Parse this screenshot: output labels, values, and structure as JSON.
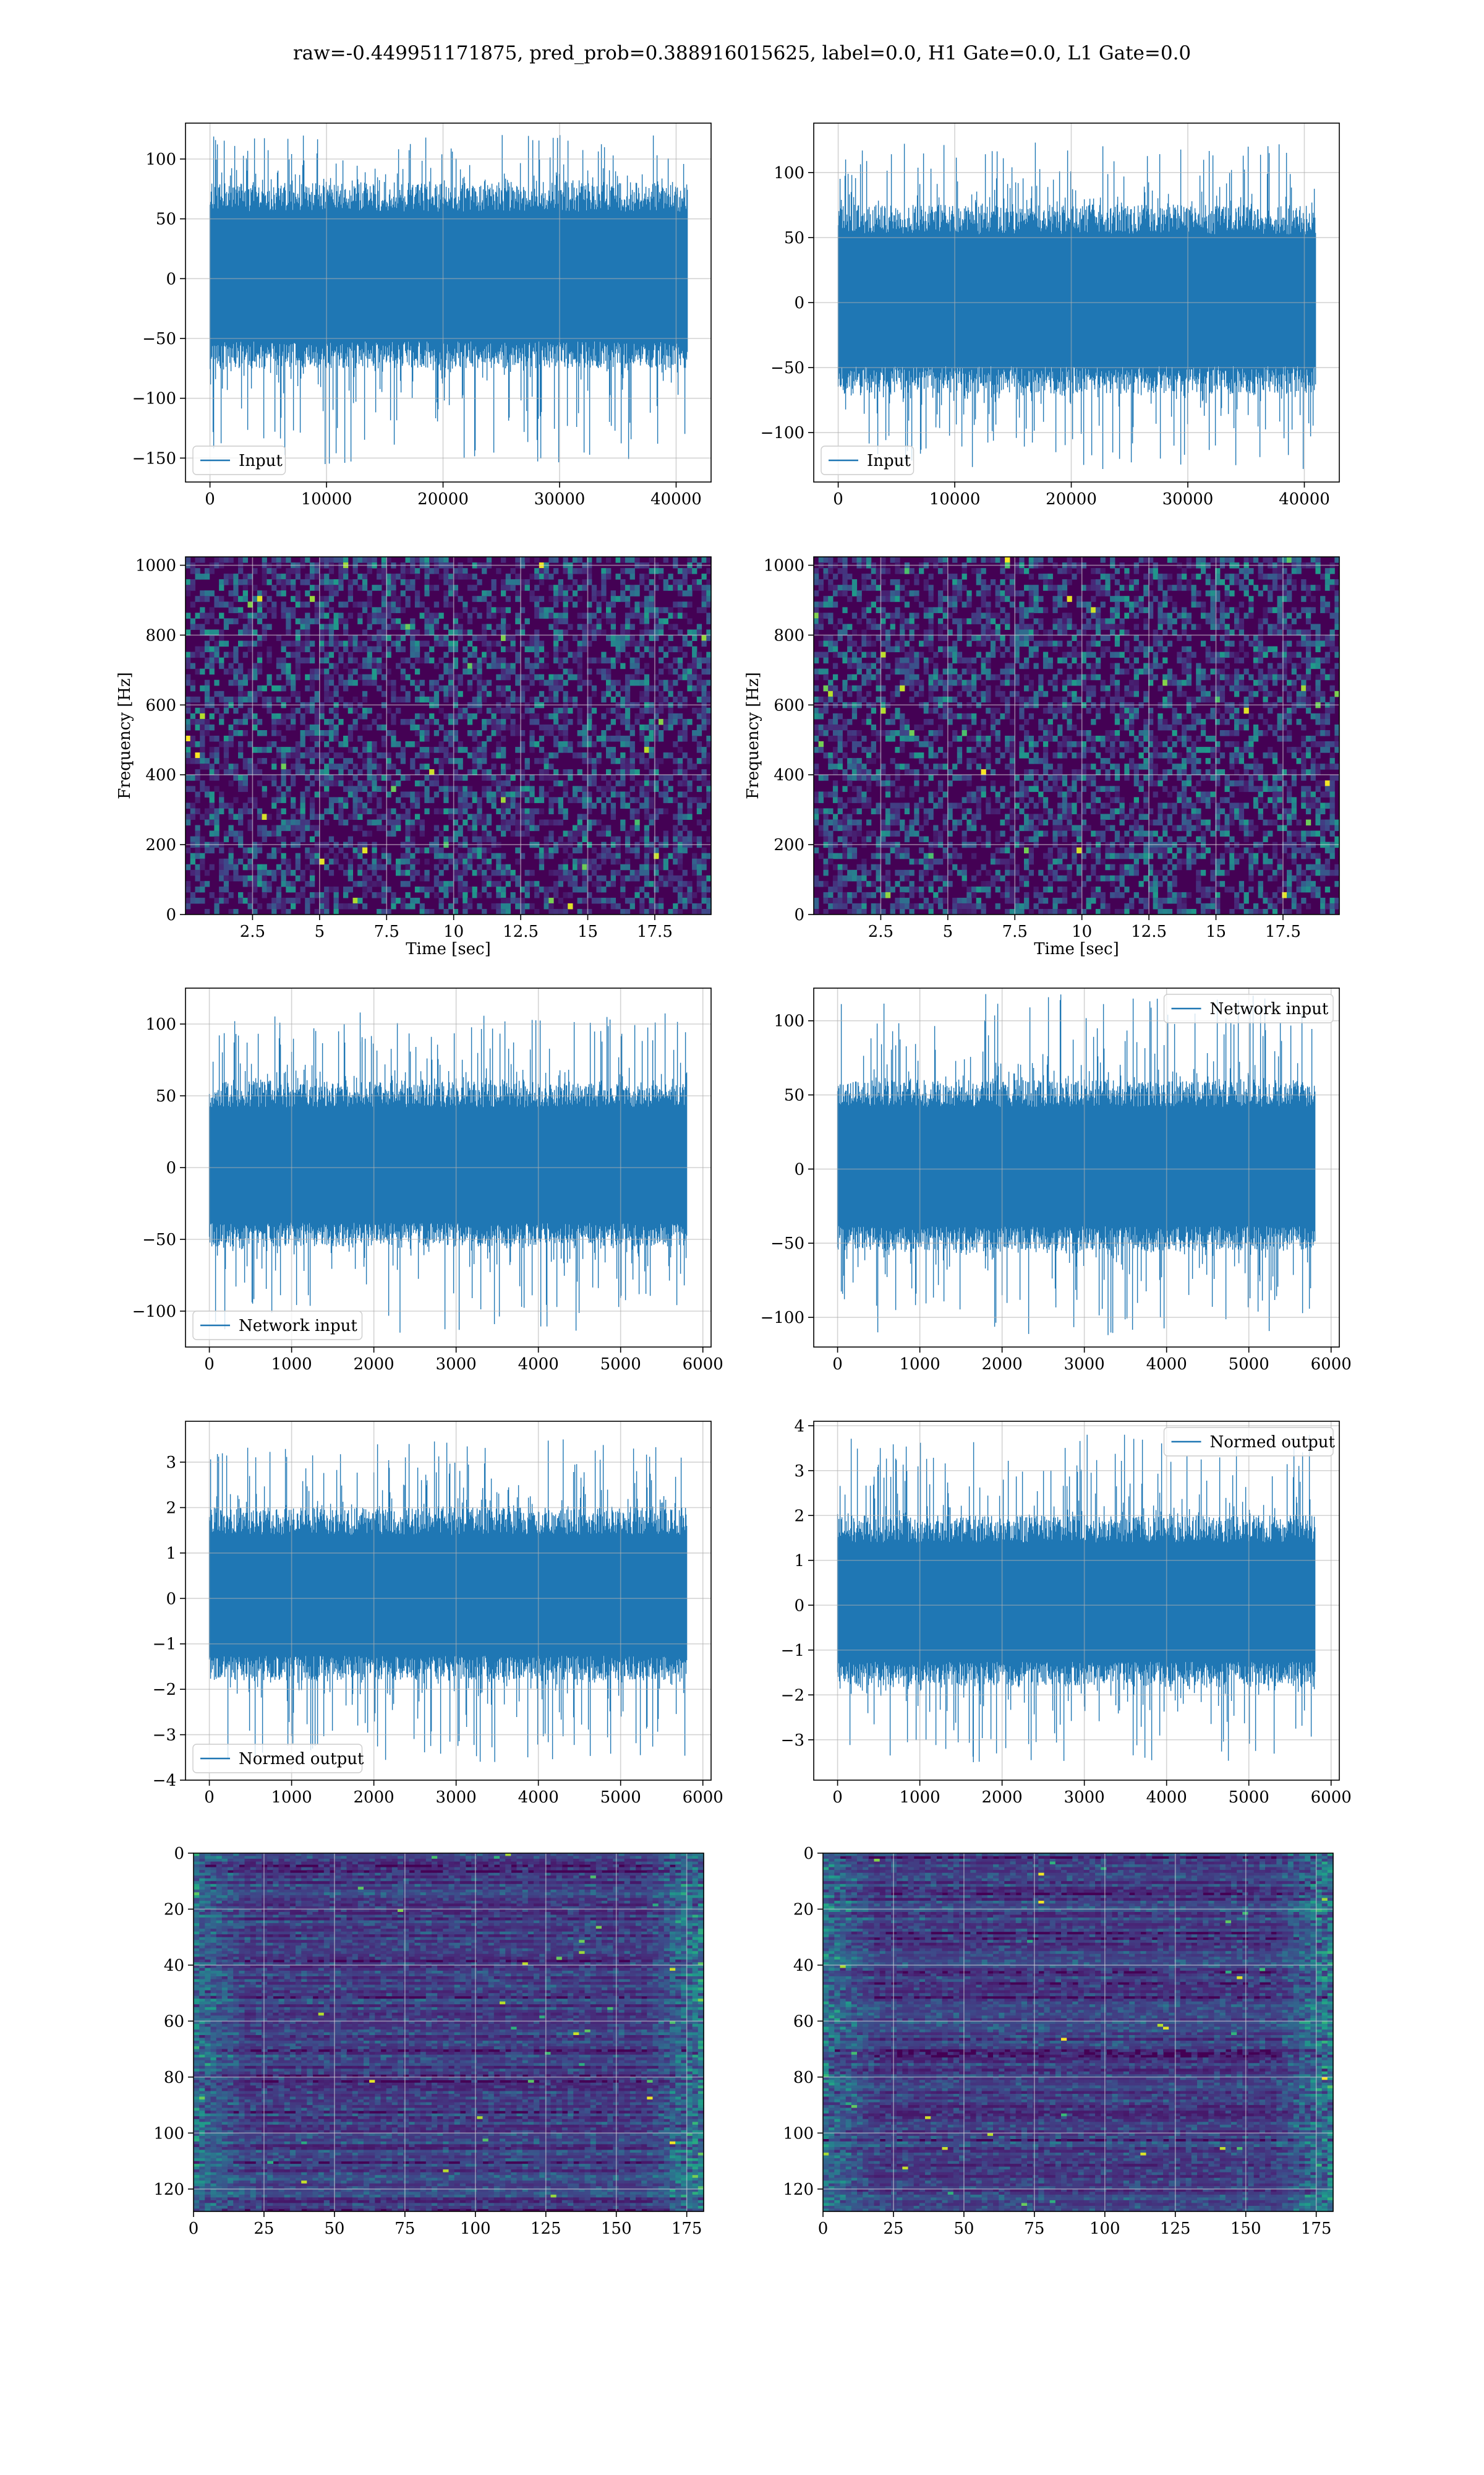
{
  "figure": {
    "title": "raw=-0.449951171875, pred_prob=0.388916015625, label=0.0, H1 Gate=0.0, L1 Gate=0.0"
  },
  "colors": {
    "line": "#1f77b4",
    "grid": "#b0b0b0",
    "viridis_dark": "#440154",
    "viridis_mid": "#21918c",
    "viridis_bright": "#fde725"
  },
  "chart_data": [
    {
      "id": "h1-input",
      "type": "line",
      "title": "",
      "xlabel": "",
      "ylabel": "",
      "xlim": [
        -2100,
        43000
      ],
      "ylim": [
        -170,
        130
      ],
      "xticks": [
        0,
        10000,
        20000,
        30000,
        40000
      ],
      "yticks": [
        -150,
        -100,
        -50,
        0,
        50,
        100
      ],
      "grid": true,
      "legend": "lower-left",
      "series": [
        {
          "name": "Input",
          "n": 40960,
          "y_min": -155,
          "y_max": 120,
          "envelope_lo": -75,
          "envelope_hi": 80
        }
      ]
    },
    {
      "id": "l1-input",
      "type": "line",
      "title": "",
      "xlabel": "",
      "ylabel": "",
      "xlim": [
        -2100,
        43000
      ],
      "ylim": [
        -138,
        138
      ],
      "xticks": [
        0,
        10000,
        20000,
        30000,
        40000
      ],
      "yticks": [
        -100,
        -50,
        0,
        50,
        100
      ],
      "grid": true,
      "legend": "lower-left",
      "series": [
        {
          "name": "Input",
          "n": 40960,
          "y_min": -128,
          "y_max": 123,
          "envelope_lo": -70,
          "envelope_hi": 75
        }
      ]
    },
    {
      "id": "h1-spectrogram",
      "type": "heatmap",
      "title": "",
      "xlabel": "Time [sec]",
      "ylabel": "Frequency [Hz]",
      "xlim": [
        0,
        19.6
      ],
      "ylim": [
        0,
        1024
      ],
      "xticks": [
        2.5,
        5.0,
        7.5,
        10.0,
        12.5,
        15.0,
        17.5
      ],
      "yticks": [
        0,
        200,
        400,
        600,
        800,
        1000
      ],
      "grid": true,
      "colormap": "viridis"
    },
    {
      "id": "l1-spectrogram",
      "type": "heatmap",
      "title": "",
      "xlabel": "Time [sec]",
      "ylabel": "Frequency [Hz]",
      "xlim": [
        0,
        19.6
      ],
      "ylim": [
        0,
        1024
      ],
      "xticks": [
        2.5,
        5.0,
        7.5,
        10.0,
        12.5,
        15.0,
        17.5
      ],
      "yticks": [
        0,
        200,
        400,
        600,
        800,
        1000
      ],
      "grid": true,
      "colormap": "viridis"
    },
    {
      "id": "h1-network-input",
      "type": "line",
      "title": "",
      "xlabel": "",
      "ylabel": "",
      "xlim": [
        -290,
        6100
      ],
      "ylim": [
        -125,
        125
      ],
      "xticks": [
        0,
        1000,
        2000,
        3000,
        4000,
        5000,
        6000
      ],
      "yticks": [
        -100,
        -50,
        0,
        50,
        100
      ],
      "grid": true,
      "legend": "lower-left",
      "series": [
        {
          "name": "Network input",
          "n": 5800,
          "y_min": -115,
          "y_max": 108,
          "envelope_lo": -55,
          "envelope_hi": 60
        }
      ]
    },
    {
      "id": "l1-network-input",
      "type": "line",
      "title": "",
      "xlabel": "",
      "ylabel": "",
      "xlim": [
        -290,
        6100
      ],
      "ylim": [
        -120,
        122
      ],
      "xticks": [
        0,
        1000,
        2000,
        3000,
        4000,
        5000,
        6000
      ],
      "yticks": [
        -100,
        -50,
        0,
        50,
        100
      ],
      "grid": true,
      "legend": "upper-right",
      "series": [
        {
          "name": "Network input",
          "n": 5800,
          "y_min": -112,
          "y_max": 118,
          "envelope_lo": -55,
          "envelope_hi": 60
        }
      ]
    },
    {
      "id": "h1-normed-output",
      "type": "line",
      "title": "",
      "xlabel": "",
      "ylabel": "",
      "xlim": [
        -290,
        6100
      ],
      "ylim": [
        -4.0,
        3.9
      ],
      "xticks": [
        0,
        1000,
        2000,
        3000,
        4000,
        5000,
        6000
      ],
      "yticks": [
        -4,
        -3,
        -2,
        -1,
        0,
        1,
        2,
        3
      ],
      "grid": true,
      "legend": "lower-left",
      "series": [
        {
          "name": "Normed output",
          "n": 5800,
          "y_min": -3.6,
          "y_max": 3.5,
          "envelope_lo": -1.8,
          "envelope_hi": 2.0
        }
      ]
    },
    {
      "id": "l1-normed-output",
      "type": "line",
      "title": "",
      "xlabel": "",
      "ylabel": "",
      "xlim": [
        -290,
        6100
      ],
      "ylim": [
        -3.9,
        4.1
      ],
      "xticks": [
        0,
        1000,
        2000,
        3000,
        4000,
        5000,
        6000
      ],
      "yticks": [
        -3,
        -2,
        -1,
        0,
        1,
        2,
        3,
        4
      ],
      "grid": true,
      "legend": "upper-right",
      "series": [
        {
          "name": "Normed output",
          "n": 5800,
          "y_min": -3.5,
          "y_max": 3.8,
          "envelope_lo": -1.8,
          "envelope_hi": 2.0
        }
      ]
    },
    {
      "id": "h1-feature-map",
      "type": "heatmap",
      "title": "",
      "xlabel": "",
      "ylabel": "",
      "xlim": [
        0,
        181
      ],
      "ylim": [
        128,
        0
      ],
      "xticks": [
        0,
        25,
        50,
        75,
        100,
        125,
        150,
        175
      ],
      "yticks": [
        0,
        20,
        40,
        60,
        80,
        100,
        120
      ],
      "grid": true,
      "colormap": "viridis"
    },
    {
      "id": "l1-feature-map",
      "type": "heatmap",
      "title": "",
      "xlabel": "",
      "ylabel": "",
      "xlim": [
        0,
        181
      ],
      "ylim": [
        128,
        0
      ],
      "xticks": [
        0,
        25,
        50,
        75,
        100,
        125,
        150,
        175
      ],
      "yticks": [
        0,
        20,
        40,
        60,
        80,
        100,
        120
      ],
      "grid": true,
      "colormap": "viridis"
    }
  ]
}
